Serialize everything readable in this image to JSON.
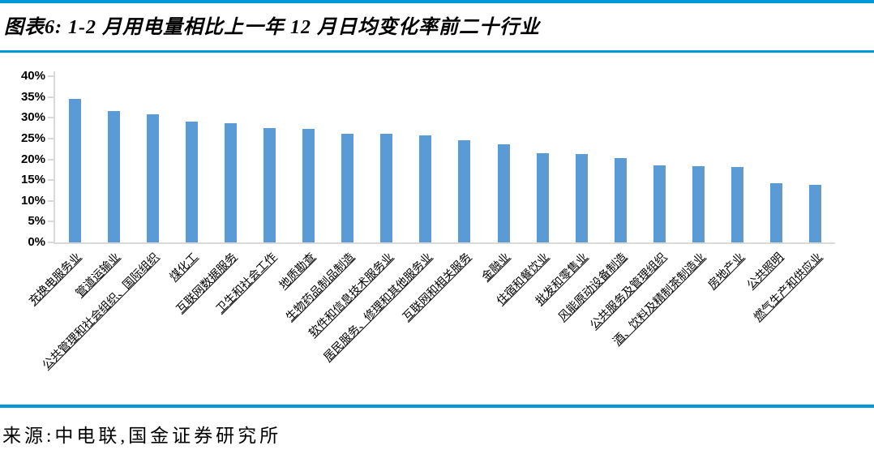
{
  "header": {
    "title": "图表6: 1-2 月用电量相比上一年 12 月日均变化率前二十行业"
  },
  "footer": {
    "source": "来源:中电联,国金证券研究所"
  },
  "colors": {
    "accent_rule": "#0099D8",
    "bar": "#5B9BD5",
    "axis": "#D9D9D9",
    "text": "#000000"
  },
  "chart_data": {
    "type": "bar",
    "title": "1-2 月用电量相比上一年 12 月日均变化率前二十行业",
    "xlabel": "",
    "ylabel": "",
    "ylim": [
      0,
      40
    ],
    "ytick_step": 5,
    "ytick_labels": [
      "40%",
      "35%",
      "30%",
      "25%",
      "20%",
      "15%",
      "10%",
      "5%",
      "0%"
    ],
    "grid": false,
    "legend": "none",
    "xlabel_rotation": 45,
    "xlabel_underline": true,
    "categories": [
      "充换电服务业",
      "管道运输业",
      "公共管理和社会组织、国际组织",
      "煤化工",
      "互联网数据服务",
      "卫生和社会工作",
      "地质勘查",
      "生物药品制品制造",
      "软件和信息技术服务业",
      "居民服务、修理和其他服务业",
      "互联网和相关服务",
      "金融业",
      "住宿和餐饮业",
      "批发和零售业",
      "风能原动设备制造",
      "公共服务及管理组织",
      "酒、饮料及精制茶制造业",
      "房地产业",
      "公共照明",
      "燃气生产和供应业"
    ],
    "values": [
      34.6,
      31.7,
      30.8,
      29.0,
      28.7,
      27.6,
      27.4,
      26.2,
      26.1,
      25.8,
      24.5,
      23.6,
      21.4,
      21.2,
      20.4,
      18.5,
      18.3,
      18.1,
      14.3,
      13.8
    ],
    "unit": "%"
  }
}
